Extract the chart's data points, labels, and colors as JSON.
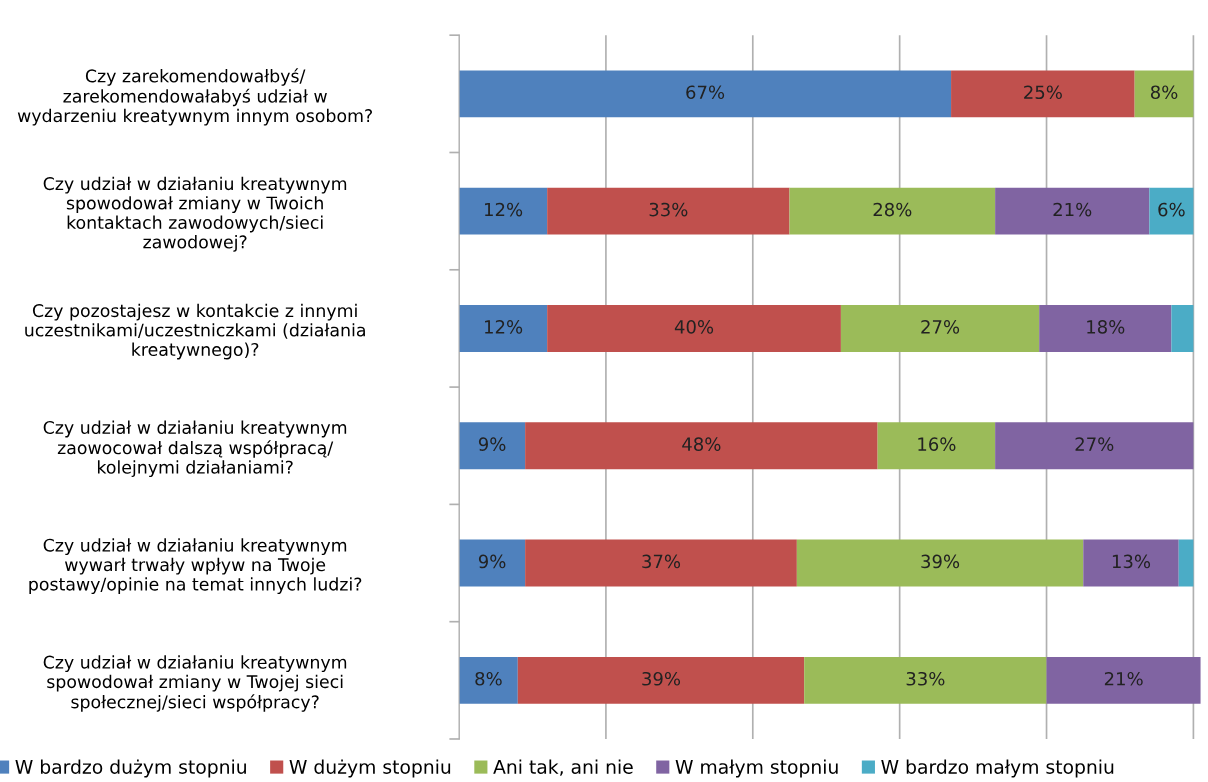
{
  "chart_data": {
    "type": "bar",
    "orientation": "horizontal",
    "stacked": true,
    "categories": [
      "Czy zarekomendowałbyś/\nzarekomendowałabyś udział w\nwydarzeniu kreatywnym innym osobom?",
      "Czy udział w działaniu kreatywnym\nspowodował zmiany w Twoich\nkontaktach zawodowych/sieci\nzawodowej?",
      "Czy pozostajesz w kontakcie z innymi\nuczestnikami/uczestniczkami (działania\nkreatywnego)?",
      "Czy udział w działaniu kreatywnym\nzaowocował dalszą współpracą/\nkolejnymi działaniami?",
      "Czy udział w działaniu kreatywnym\nwywarł trwały wpływ na Twoje\npostawy/opinie na temat innych ludzi?",
      "Czy udział w działaniu kreatywnym\nspowodował zmiany w Twojej sieci\nspołecznej/sieci współpracy?"
    ],
    "series": [
      {
        "name": "W bardzo dużym stopniu",
        "color": "#4f81bd",
        "values": [
          67,
          12,
          12,
          9,
          9,
          8
        ],
        "value_labels": [
          "67%",
          "12%",
          "12%",
          "9%",
          "9%",
          "8%"
        ]
      },
      {
        "name": "W dużym stopniu",
        "color": "#c0504d",
        "values": [
          25,
          33,
          40,
          48,
          37,
          39
        ],
        "value_labels": [
          "25%",
          "33%",
          "40%",
          "48%",
          "37%",
          "39%"
        ]
      },
      {
        "name": "Ani tak, ani nie",
        "color": "#9bbb59",
        "values": [
          8,
          28,
          27,
          16,
          39,
          33
        ],
        "value_labels": [
          "8%",
          "28%",
          "27%",
          "16%",
          "39%",
          "33%"
        ]
      },
      {
        "name": "W małym stopniu",
        "color": "#8064a2",
        "values": [
          0,
          21,
          18,
          27,
          13,
          21
        ],
        "value_labels": [
          null,
          "21%",
          "18%",
          "27%",
          "13%",
          "21%"
        ]
      },
      {
        "name": "W bardzo małym stopniu",
        "color": "#4bacc6",
        "values": [
          0,
          6,
          3,
          0,
          2,
          0
        ],
        "value_labels": [
          null,
          "6%",
          null,
          null,
          null,
          null
        ]
      }
    ],
    "xlim": [
      0,
      101
    ],
    "xticks": [
      {
        "value": 0,
        "label": null
      },
      {
        "value": 20,
        "label": null
      },
      {
        "value": 40,
        "label": null
      },
      {
        "value": 60,
        "label": null
      },
      {
        "value": 80,
        "label": null
      },
      {
        "value": 100,
        "label": null
      }
    ],
    "grid": "x",
    "legend": "bottom"
  }
}
